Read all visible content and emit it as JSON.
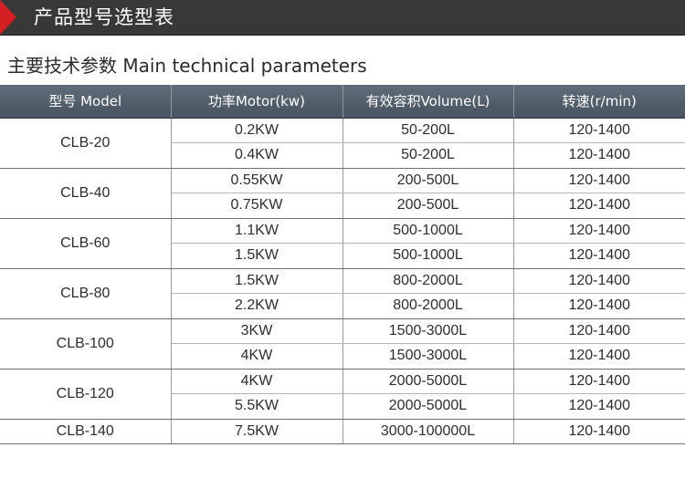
{
  "banner": {
    "title": "产品型号选型表"
  },
  "section": {
    "title": "主要技术参数 Main technical parameters"
  },
  "table": {
    "headers": [
      "型号 Model",
      "功率Motor(kw)",
      "有效容积Volume(L)",
      "转速(r/min)"
    ],
    "groups": [
      {
        "model": "CLB-20",
        "rows": [
          {
            "power": "0.2KW",
            "volume": "50-200L",
            "speed": "120-1400"
          },
          {
            "power": "0.4KW",
            "volume": "50-200L",
            "speed": "120-1400"
          }
        ]
      },
      {
        "model": "CLB-40",
        "rows": [
          {
            "power": "0.55KW",
            "volume": "200-500L",
            "speed": "120-1400"
          },
          {
            "power": "0.75KW",
            "volume": "200-500L",
            "speed": "120-1400"
          }
        ]
      },
      {
        "model": "CLB-60",
        "rows": [
          {
            "power": "1.1KW",
            "volume": "500-1000L",
            "speed": "120-1400"
          },
          {
            "power": "1.5KW",
            "volume": "500-1000L",
            "speed": "120-1400"
          }
        ]
      },
      {
        "model": "CLB-80",
        "rows": [
          {
            "power": "1.5KW",
            "volume": "800-2000L",
            "speed": "120-1400"
          },
          {
            "power": "2.2KW",
            "volume": "800-2000L",
            "speed": "120-1400"
          }
        ]
      },
      {
        "model": "CLB-100",
        "rows": [
          {
            "power": "3KW",
            "volume": "1500-3000L",
            "speed": "120-1400"
          },
          {
            "power": "4KW",
            "volume": "1500-3000L",
            "speed": "120-1400"
          }
        ]
      },
      {
        "model": "CLB-120",
        "rows": [
          {
            "power": "4KW",
            "volume": "2000-5000L",
            "speed": "120-1400"
          },
          {
            "power": "5.5KW",
            "volume": "2000-5000L",
            "speed": "120-1400"
          }
        ]
      },
      {
        "model": "CLB-140",
        "rows": [
          {
            "power": "7.5KW",
            "volume": "3000-100000L",
            "speed": "120-1400"
          }
        ]
      }
    ]
  },
  "colors": {
    "banner_bg": "#383838",
    "banner_accent": "#d41e22",
    "header_bg": "#55616c"
  }
}
